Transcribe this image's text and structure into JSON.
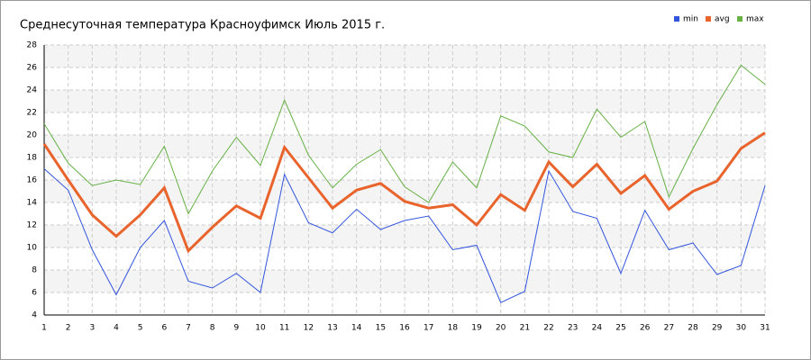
{
  "chart_data": {
    "type": "line",
    "title": "Среднесуточная температура Красноуфимск  Июль 2015 г.",
    "x": [
      1,
      2,
      3,
      4,
      5,
      6,
      7,
      8,
      9,
      10,
      11,
      12,
      13,
      14,
      15,
      16,
      17,
      18,
      19,
      20,
      21,
      22,
      23,
      24,
      25,
      26,
      27,
      28,
      29,
      30,
      31
    ],
    "series": [
      {
        "name": "min",
        "color": "#3355dd",
        "width": 1,
        "values": [
          17,
          15.1,
          9.8,
          5.8,
          10,
          12.4,
          7,
          6.4,
          7.7,
          6,
          16.5,
          12.2,
          11.3,
          13.4,
          11.6,
          12.4,
          12.8,
          9.8,
          10.2,
          5.1,
          6.1,
          16.8,
          13.2,
          12.6,
          7.7,
          13.3,
          9.8,
          10.4,
          7.6,
          8.4,
          15.5
        ]
      },
      {
        "name": "avg",
        "color": "#e8642c",
        "width": 3,
        "values": [
          19.2,
          16,
          12.9,
          11,
          12.9,
          15.3,
          9.7,
          11.8,
          13.7,
          12.6,
          18.9,
          16.2,
          13.5,
          15.1,
          15.7,
          14.1,
          13.5,
          13.8,
          12,
          14.7,
          13.3,
          17.6,
          15.4,
          17.4,
          14.8,
          16.4,
          13.4,
          15,
          15.9,
          18.8,
          20.2
        ]
      },
      {
        "name": "max",
        "color": "#66b044",
        "width": 1,
        "values": [
          21,
          17.5,
          15.5,
          16,
          15.6,
          19,
          13,
          16.8,
          19.8,
          17.3,
          23.1,
          18.2,
          15.3,
          17.4,
          18.7,
          15.4,
          14,
          17.6,
          15.3,
          21.7,
          20.8,
          18.5,
          18,
          22.3,
          19.8,
          21.2,
          14.5,
          18.8,
          22.7,
          26.2,
          24.5
        ]
      }
    ],
    "xlim": [
      1,
      31
    ],
    "xticks": [
      1,
      2,
      3,
      4,
      5,
      6,
      7,
      8,
      9,
      10,
      11,
      12,
      13,
      14,
      15,
      16,
      17,
      18,
      19,
      20,
      21,
      22,
      23,
      24,
      25,
      26,
      27,
      28,
      29,
      30,
      31
    ],
    "ylim": [
      4,
      28
    ],
    "yticks": [
      4,
      6,
      8,
      10,
      12,
      14,
      16,
      18,
      20,
      22,
      24,
      26,
      28
    ],
    "grid": true,
    "legend": "top-right"
  }
}
